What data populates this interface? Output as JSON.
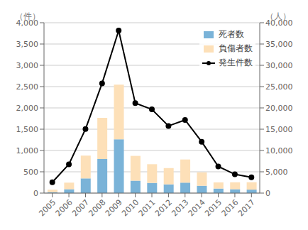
{
  "chart_data": {
    "type": "bar",
    "categories": [
      "2005",
      "2006",
      "2007",
      "2008",
      "2009",
      "2010",
      "2011",
      "2012",
      "2013",
      "2014",
      "2015",
      "2016",
      "2017"
    ],
    "series": [
      {
        "name": "死者数",
        "type": "bar",
        "axis": "y2",
        "color": "#7ab3d8",
        "values": [
          216,
          907,
          3448,
          7997,
          12632,
          2913,
          2391,
          2050,
          2451,
          1723,
          1069,
          908,
          815
        ]
      },
      {
        "name": "負傷者数",
        "type": "bar",
        "axis": "y2",
        "color": "#fde0b8",
        "values": [
          571,
          1543,
          5353,
          9670,
          12815,
          5824,
          4389,
          3822,
          5438,
          3143,
          1443,
          1627,
          1736
        ]
      },
      {
        "name": "発生件数",
        "type": "line",
        "color": "#000000",
        "marker": "o",
        "values": [
          254,
          675,
          1503,
          2577,
          3816,
          2113,
          1966,
          1577,
          1717,
          1206,
          625,
          441,
          370
        ]
      }
    ],
    "ylabel": "（件）",
    "y2label": "（人）",
    "ylim": [
      0,
      4000
    ],
    "yticks": [
      0,
      500,
      {
        "value": 1000,
        "label": "1,000"
      },
      {
        "value": 1500,
        "label": "1,500"
      },
      {
        "value": 2000,
        "label": "2,000"
      },
      {
        "value": 2500,
        "label": "2,500"
      },
      {
        "value": 3000,
        "label": "3,000"
      },
      {
        "value": 3500,
        "label": "3,500"
      },
      {
        "value": 4000,
        "label": "4,000"
      }
    ],
    "y2lim": [
      0,
      40000
    ],
    "y2ticks": [
      0,
      {
        "value": 5000,
        "label": "5,000"
      },
      {
        "value": 10000,
        "label": "10,000"
      },
      {
        "value": 15000,
        "label": "15,000"
      },
      {
        "value": 20000,
        "label": "20,000"
      },
      {
        "value": 25000,
        "label": "25,000"
      },
      {
        "value": 30000,
        "label": "30,000"
      },
      {
        "value": 35000,
        "label": "35,000"
      },
      {
        "value": 40000,
        "label": "40,000"
      }
    ],
    "stacked": true,
    "grid": true,
    "legend": "upper right"
  }
}
